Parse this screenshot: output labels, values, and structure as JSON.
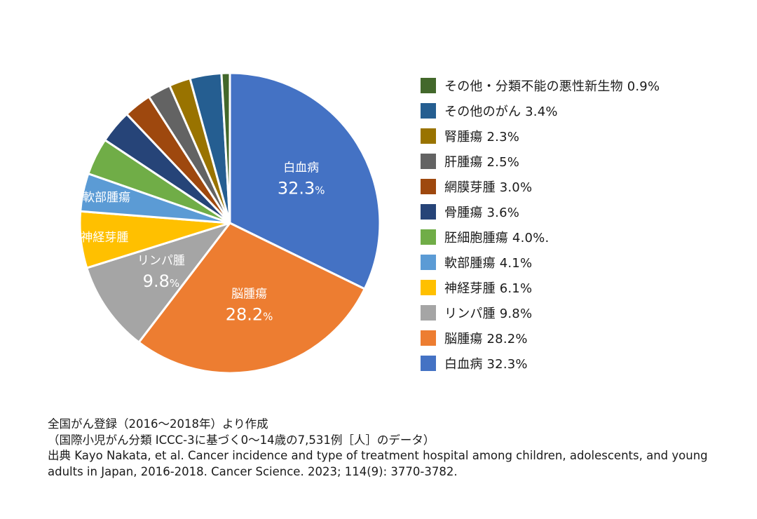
{
  "chart_data": {
    "type": "pie",
    "start": "12 o'clock",
    "direction": "clockwise",
    "slices": [
      {
        "label": "白血病",
        "value": 32.3,
        "legend": "白血病 32.3%",
        "color": "#4472c4",
        "inside_label": "白血病",
        "inside_value": "32.3",
        "inside_unit": "%"
      },
      {
        "label": "脳腫瘍",
        "value": 28.2,
        "legend": "脳腫瘍 28.2%",
        "color": "#ed7d31",
        "inside_label": "脳腫瘍",
        "inside_value": "28.2",
        "inside_unit": "%"
      },
      {
        "label": "リンパ腫",
        "value": 9.8,
        "legend": "リンパ腫 9.8%",
        "color": "#a5a5a5",
        "inside_label": "リンパ腫",
        "inside_value": "9.8",
        "inside_unit": "%"
      },
      {
        "label": "神経芽腫",
        "value": 6.1,
        "legend": "神経芽腫 6.1%",
        "color": "#ffc000",
        "inside_label": "神経芽腫"
      },
      {
        "label": "軟部腫瘍",
        "value": 4.1,
        "legend": "軟部腫瘍 4.1%",
        "color": "#5b9bd5",
        "inside_label": "軟部腫瘍"
      },
      {
        "label": "胚細胞腫瘍",
        "value": 4.0,
        "legend": "胚細胞腫瘍 4.0%.",
        "color": "#70ad47"
      },
      {
        "label": "骨腫瘍",
        "value": 3.6,
        "legend": "骨腫瘍 3.6%",
        "color": "#264478"
      },
      {
        "label": "網膜芽腫",
        "value": 3.0,
        "legend": "網膜芽腫 3.0%",
        "color": "#9e480e"
      },
      {
        "label": "肝腫瘍",
        "value": 2.5,
        "legend": "肝腫瘍 2.5%",
        "color": "#636363"
      },
      {
        "label": "腎腫瘍",
        "value": 2.3,
        "legend": "腎腫瘍 2.3%",
        "color": "#997300"
      },
      {
        "label": "その他のがん",
        "value": 3.4,
        "legend": "その他のがん 3.4%",
        "color": "#255e91"
      },
      {
        "label": "その他・分類不能の悪性新生物",
        "value": 0.9,
        "legend": "その他・分類不能の悪性新生物 0.9%",
        "color": "#43682b"
      }
    ],
    "legend_placement": "right"
  },
  "source": {
    "line1": "全国がん登録（2016〜2018年）より作成",
    "line2": "（国際小児がん分類 ICCC-3に基づく0〜14歳の7,531例［人］のデータ）",
    "line3": "出典 Kayo Nakata, et al. Cancer incidence and type of treatment hospital among children, adolescents, and young",
    "line4": "adults in Japan, 2016-2018. Cancer Science. 2023; 114(9): 3770-3782."
  }
}
